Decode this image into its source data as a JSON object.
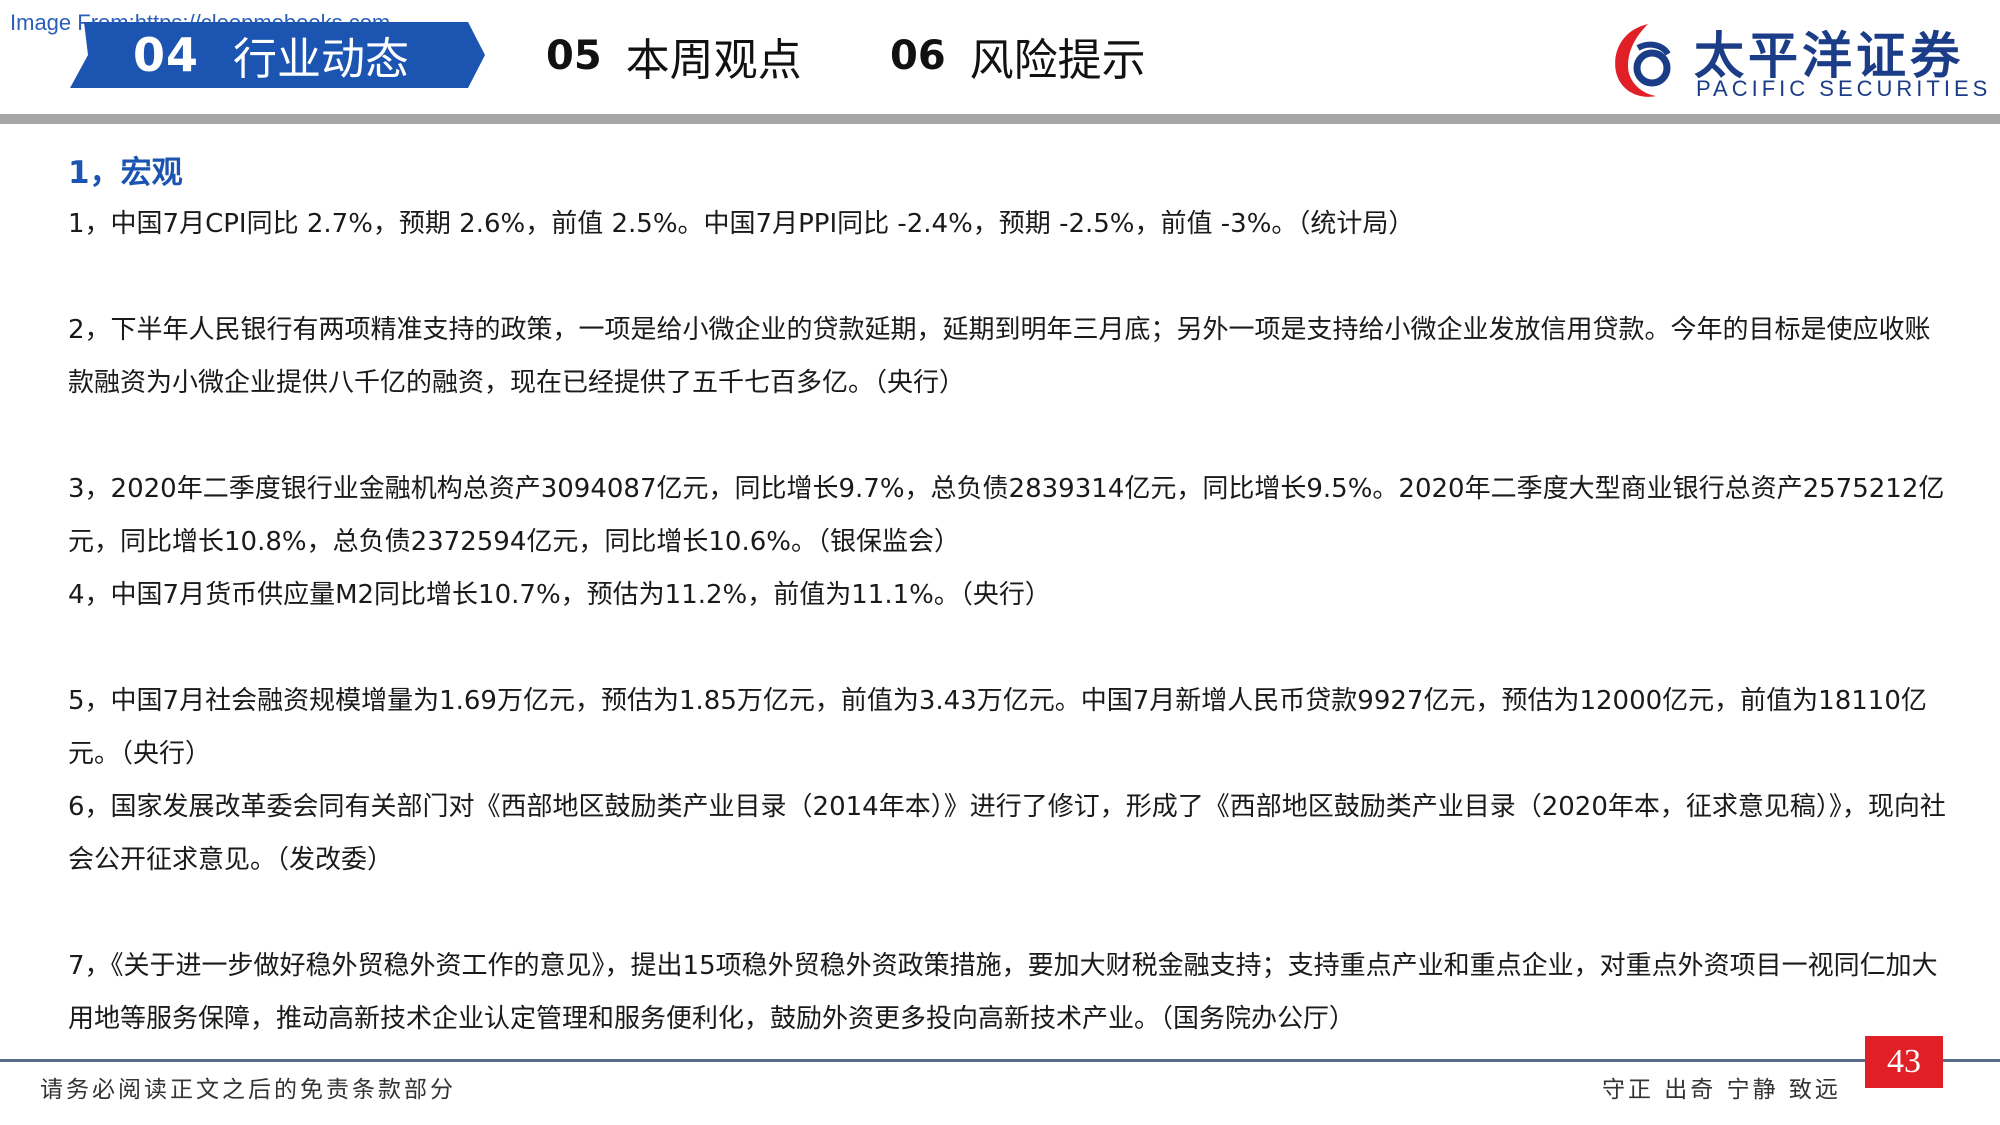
{
  "watermark": "Image From:https://cloopmebooks.com",
  "nav": {
    "active": {
      "num": "04",
      "label": "行业动态"
    },
    "tab5": {
      "num": "05",
      "label": "本周观点"
    },
    "tab6": {
      "num": "06",
      "label": "风险提示"
    }
  },
  "logo": {
    "cn": "太平洋证券",
    "en": "PACIFIC SECURITIES",
    "colors": {
      "brand_red": "#e01f26",
      "brand_navy": "#1b3c86"
    }
  },
  "section_title": "1，宏观",
  "paragraphs": [
    "1，中国7月CPI同比 2.7%，预期 2.6%，前值 2.5%。中国7月PPI同比 -2.4%，预期 -2.5%，前值 -3%。（统计局）",
    "2，下半年人民银行有两项精准支持的政策，一项是给小微企业的贷款延期，延期到明年三月底；另外一项是支持给小微企业发放信用贷款。今年的目标是使应收账款融资为小微企业提供八千亿的融资，现在已经提供了五千七百多亿。（央行）",
    "3，2020年二季度银行业金融机构总资产3094087亿元，同比增长9.7%，总负债2839314亿元，同比增长9.5%。2020年二季度大型商业银行总资产2575212亿元，同比增长10.8%，总负债2372594亿元，同比增长10.6%。（银保监会）",
    "4，中国7月货币供应量M2同比增长10.7%，预估为11.2%，前值为11.1%。（央行）",
    "5，中国7月社会融资规模增量为1.69万亿元，预估为1.85万亿元，前值为3.43万亿元。中国7月新增人民币贷款9927亿元，预估为12000亿元，前值为18110亿元。（央行）",
    "6，国家发展改革委会同有关部门对《西部地区鼓励类产业目录（2014年本）》进行了修订，形成了《西部地区鼓励类产业目录（2020年本，征求意见稿）》，现向社会公开征求意见。（发改委）",
    "7，《关于进一步做好稳外贸稳外资工作的意见》，提出15项稳外贸稳外资政策措施，要加大财税金融支持；支持重点产业和重点企业，对重点外资项目一视同仁加大用地等服务保障，推动高新技术企业认定管理和服务便利化，鼓励外资更多投向高新技术产业。（国务院办公厅）"
  ],
  "footer": {
    "disclaimer": "请务必阅读正文之后的免责条款部分",
    "motto": "守正 出奇 宁静 致远",
    "page": "43"
  },
  "colors": {
    "accent_blue": "#1b55b1",
    "page_badge_red": "#e01f26"
  }
}
